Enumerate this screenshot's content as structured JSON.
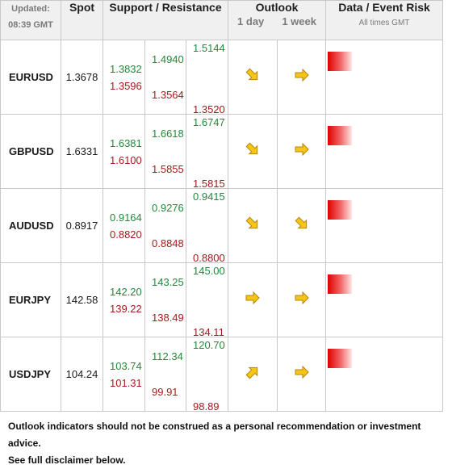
{
  "header": {
    "updated_label": "Updated:",
    "updated_time": "08:39 GMT",
    "spot": "Spot",
    "support_resistance": "Support / Resistance",
    "outlook": "Outlook",
    "outlook_1day": "1 day",
    "outlook_1week": "1 week",
    "data_event_risk": "Data / Event Risk",
    "all_times": "All times GMT"
  },
  "rows": [
    {
      "pair": "EURUSD",
      "spot": "1.3678",
      "c1_res": "1.3832",
      "c1_sup": "1.3596",
      "c2_res": "1.4940",
      "c2_sup": "1.3564",
      "c3_res": "1.5144",
      "c3_sup": "1.3520",
      "day_arrow": "down-right-arrow",
      "week_arrow": "right-arrow"
    },
    {
      "pair": "GBPUSD",
      "spot": "1.6331",
      "c1_res": "1.6381",
      "c1_sup": "1.6100",
      "c2_res": "1.6618",
      "c2_sup": "1.5855",
      "c3_res": "1.6747",
      "c3_sup": "1.5815",
      "day_arrow": "down-right-arrow",
      "week_arrow": "right-arrow"
    },
    {
      "pair": "AUDUSD",
      "spot": "0.8917",
      "c1_res": "0.9164",
      "c1_sup": "0.8820",
      "c2_res": "0.9276",
      "c2_sup": "0.8848",
      "c3_res": "0.9415",
      "c3_sup": "0.8800",
      "day_arrow": "down-right-arrow",
      "week_arrow": "down-right-arrow"
    },
    {
      "pair": "EURJPY",
      "spot": "142.58",
      "c1_res": "142.20",
      "c1_sup": "139.22",
      "c2_res": "143.25",
      "c2_sup": "138.49",
      "c3_res": "145.00",
      "c3_sup": "134.11",
      "day_arrow": "right-arrow",
      "week_arrow": "right-arrow"
    },
    {
      "pair": "USDJPY",
      "spot": "104.24",
      "c1_res": "103.74",
      "c1_sup": "101.31",
      "c2_res": "112.34",
      "c2_sup": "99.91",
      "c3_res": "120.70",
      "c3_sup": "98.89",
      "day_arrow": "up-right-arrow",
      "week_arrow": "right-arrow"
    }
  ],
  "footer": {
    "line1": "Outlook indicators should not be construed as a personal recommendation or investment advice.",
    "line2": "See full disclaimer below."
  },
  "colors": {
    "resistance": "#1f8a3a",
    "support": "#a51a1a",
    "arrow_fill": "#f5c518",
    "risk": "#e00000"
  }
}
